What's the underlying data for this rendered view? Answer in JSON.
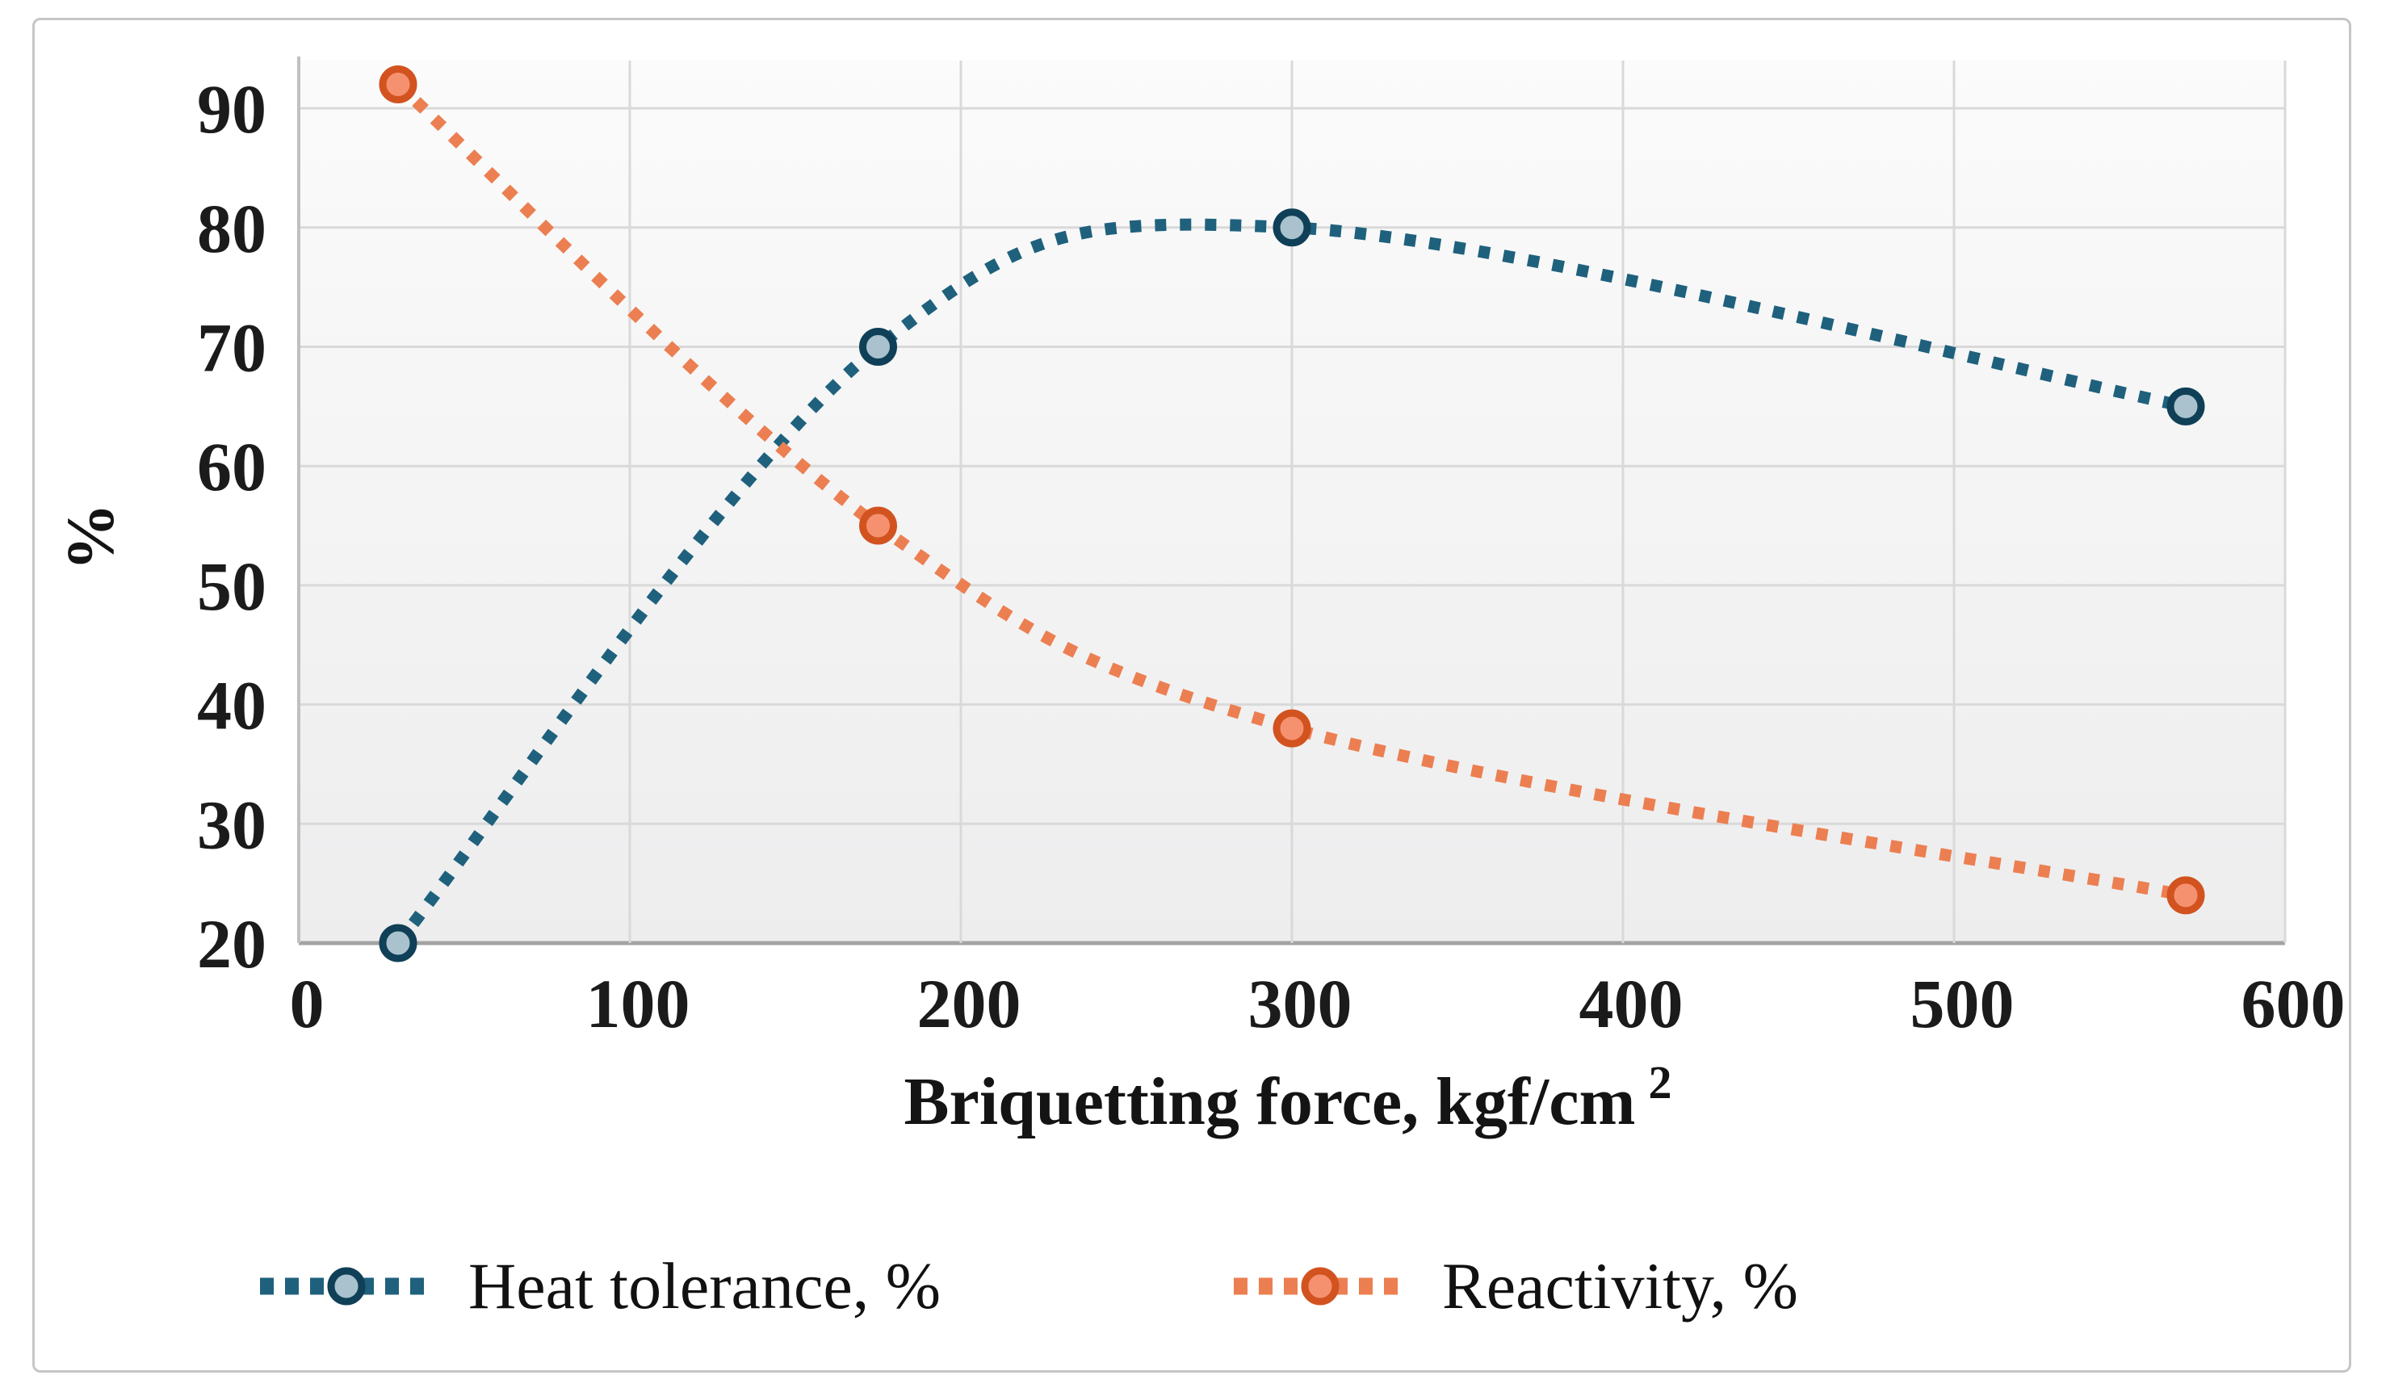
{
  "chart_data": {
    "type": "line",
    "title": "",
    "xlabel": "Briquetting force, kgf/cm",
    "xlabel_superscript": "2",
    "ylabel": "%",
    "xlim": [
      0,
      600
    ],
    "ylim": [
      20,
      94
    ],
    "x_ticks": [
      0,
      100,
      200,
      300,
      400,
      500,
      600
    ],
    "y_ticks": [
      20,
      30,
      40,
      50,
      60,
      70,
      80,
      90
    ],
    "grid": true,
    "line_style": "dotted",
    "legend_position": "bottom",
    "series": [
      {
        "name": "Heat tolerance, %",
        "x": [
          30,
          175,
          300,
          570
        ],
        "y": [
          20,
          70,
          80,
          65
        ],
        "line_color": "#1f617d",
        "marker_fill": "#a9c2ce",
        "marker_stroke": "#0f4057",
        "marker": "circle"
      },
      {
        "name": "Reactivity, %",
        "x": [
          30,
          175,
          300,
          570
        ],
        "y": [
          92,
          55,
          38,
          24
        ],
        "line_color": "#ec7f51",
        "marker_fill": "#f69170",
        "marker_stroke": "#d2531f",
        "marker": "circle"
      }
    ]
  },
  "styles": {
    "grid_color": "#d9d9d9",
    "bottom_axis_color": "#a3a3a3",
    "left_axis_color": "#c0c0c0",
    "text_color": "#1b1b1b",
    "figure_border_color": "#c6c6c6",
    "plot_bg_top": "#fbfbfb",
    "plot_bg_bottom": "#ededee"
  }
}
